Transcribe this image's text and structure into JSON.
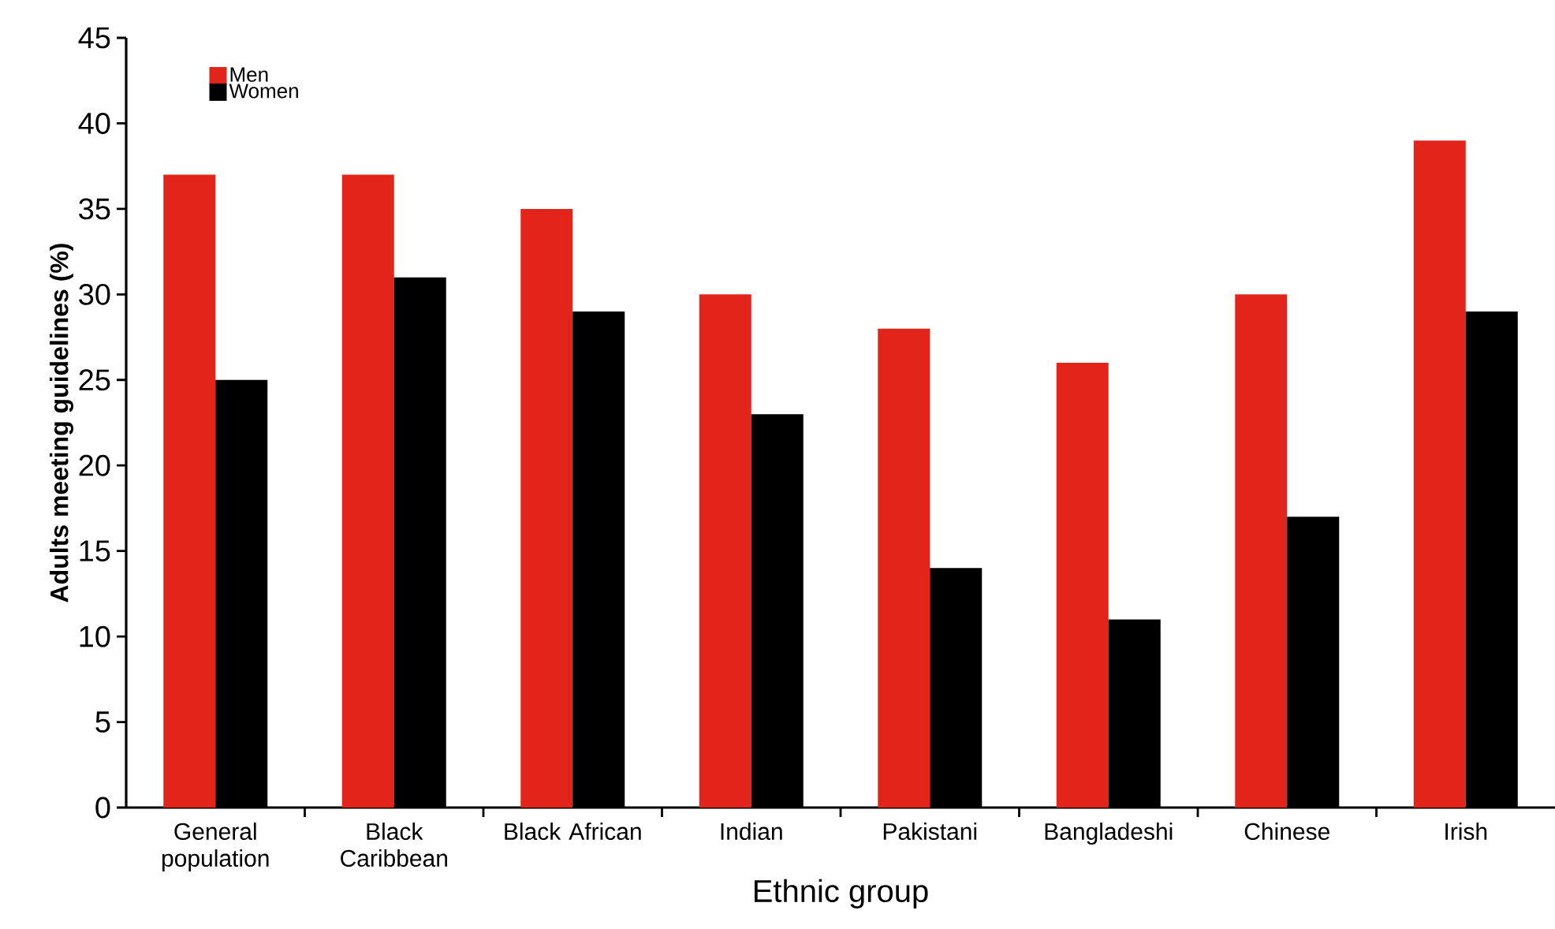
{
  "chart_data": {
    "type": "bar",
    "xlabel": "Ethnic group",
    "ylabel": "Adults meeting guidelines (%)",
    "categories": [
      "General population",
      "Black Caribbean",
      "Black African",
      "Indian",
      "Pakistani",
      "Bangladeshi",
      "Chinese",
      "Irish"
    ],
    "series": [
      {
        "name": "Men",
        "color": "#e3241b",
        "values": [
          37,
          37,
          35,
          30,
          28,
          26,
          30,
          39
        ]
      },
      {
        "name": "Women",
        "color": "#000000",
        "values": [
          25,
          31,
          29,
          23,
          14,
          11,
          17,
          29
        ]
      }
    ],
    "ylim": [
      0,
      45
    ],
    "yticks": [
      0,
      5,
      10,
      15,
      20,
      25,
      30,
      35,
      40,
      45
    ],
    "legend": "top left"
  }
}
